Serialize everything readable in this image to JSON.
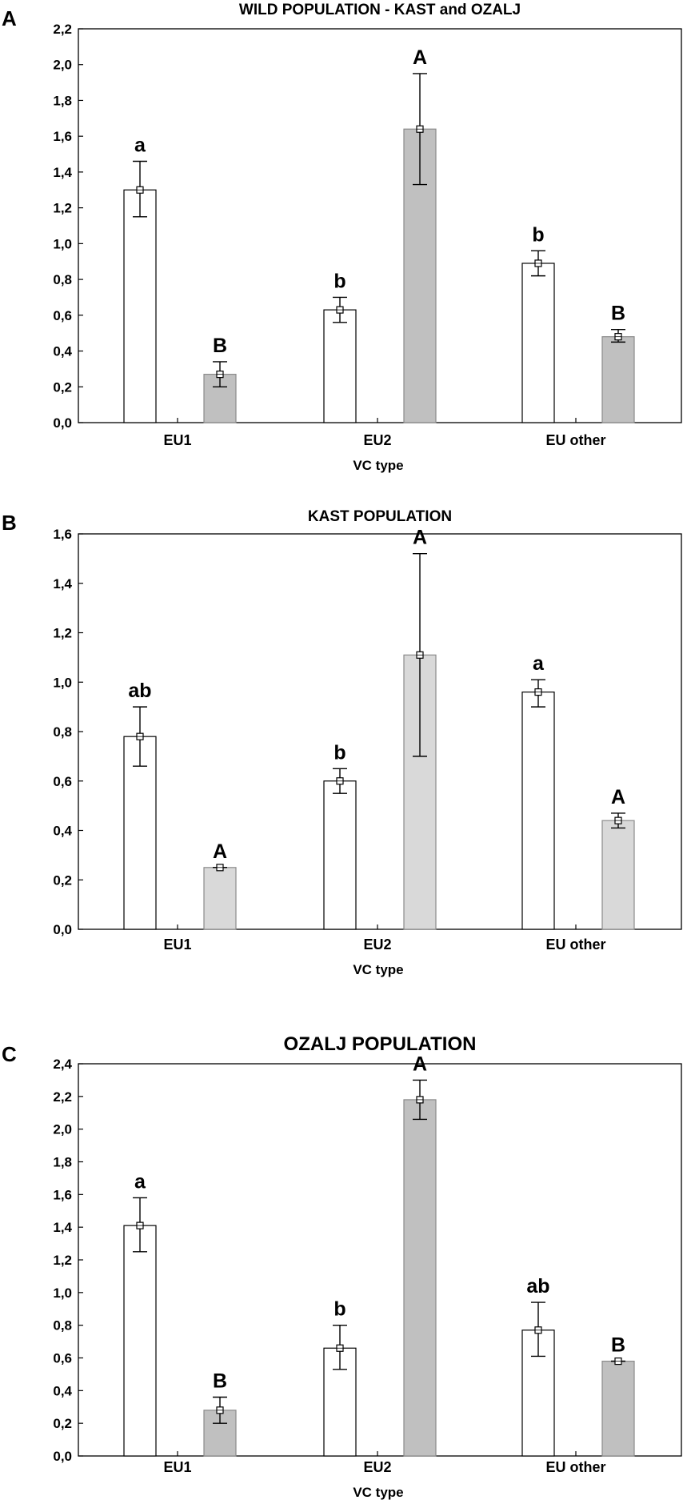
{
  "chart_data": [
    {
      "type": "bar",
      "panel_label": "A",
      "title": "WILD POPULATION - KAST and OZALJ",
      "xlabel": "VC type",
      "ylabel": "",
      "categories": [
        "EU1",
        "EU2",
        "EU other"
      ],
      "ylim": [
        0,
        2.2
      ],
      "yticks": [
        "0,0",
        "0,2",
        "0,4",
        "0,6",
        "0,8",
        "1,0",
        "1,2",
        "1,4",
        "1,6",
        "1,8",
        "2,0",
        "2,2"
      ],
      "grid": false,
      "series": [
        {
          "name": "white",
          "color": "#ffffff",
          "values": [
            1.3,
            0.63,
            0.89
          ],
          "err_low": [
            1.15,
            0.56,
            0.82
          ],
          "err_high": [
            1.46,
            0.7,
            0.96
          ],
          "letters": [
            "a",
            "b",
            "b"
          ]
        },
        {
          "name": "grey",
          "color": "#c0c0c0",
          "values": [
            0.27,
            1.64,
            0.48
          ],
          "err_low": [
            0.2,
            1.33,
            0.45
          ],
          "err_high": [
            0.34,
            1.95,
            0.52
          ],
          "letters": [
            "B",
            "A",
            "B"
          ]
        }
      ]
    },
    {
      "type": "bar",
      "panel_label": "B",
      "title": "KAST POPULATION",
      "xlabel": "VC type",
      "ylabel": "",
      "categories": [
        "EU1",
        "EU2",
        "EU other"
      ],
      "ylim": [
        0,
        1.6
      ],
      "yticks": [
        "0,0",
        "0,2",
        "0,4",
        "0,6",
        "0,8",
        "1,0",
        "1,2",
        "1,4",
        "1,6"
      ],
      "grid": false,
      "series": [
        {
          "name": "white",
          "color": "#ffffff",
          "values": [
            0.78,
            0.6,
            0.96
          ],
          "err_low": [
            0.66,
            0.55,
            0.9
          ],
          "err_high": [
            0.9,
            0.65,
            1.01
          ],
          "letters": [
            "ab",
            "b",
            "a"
          ]
        },
        {
          "name": "light grey",
          "color": "#d9d9d9",
          "values": [
            0.25,
            1.11,
            0.44
          ],
          "err_low": [
            0.25,
            0.7,
            0.41
          ],
          "err_high": [
            0.25,
            1.52,
            0.47
          ],
          "letters": [
            "A",
            "A",
            "A"
          ]
        }
      ]
    },
    {
      "type": "bar",
      "panel_label": "C",
      "title": "OZALJ POPULATION",
      "xlabel": "VC type",
      "ylabel": "",
      "categories": [
        "EU1",
        "EU2",
        "EU other"
      ],
      "ylim": [
        0,
        2.4
      ],
      "yticks": [
        "0,0",
        "0,2",
        "0,4",
        "0,6",
        "0,8",
        "1,0",
        "1,2",
        "1,4",
        "1,6",
        "1,8",
        "2,0",
        "2,2",
        "2,4"
      ],
      "grid": false,
      "series": [
        {
          "name": "white",
          "color": "#ffffff",
          "values": [
            1.41,
            0.66,
            0.77
          ],
          "err_low": [
            1.25,
            0.53,
            0.61
          ],
          "err_high": [
            1.58,
            0.8,
            0.94
          ],
          "letters": [
            "a",
            "b",
            "ab"
          ]
        },
        {
          "name": "grey",
          "color": "#c0c0c0",
          "values": [
            0.28,
            2.18,
            0.58
          ],
          "err_low": [
            0.2,
            2.06,
            0.58
          ],
          "err_high": [
            0.36,
            2.3,
            0.58
          ],
          "letters": [
            "B",
            "A",
            "B"
          ]
        }
      ]
    }
  ]
}
